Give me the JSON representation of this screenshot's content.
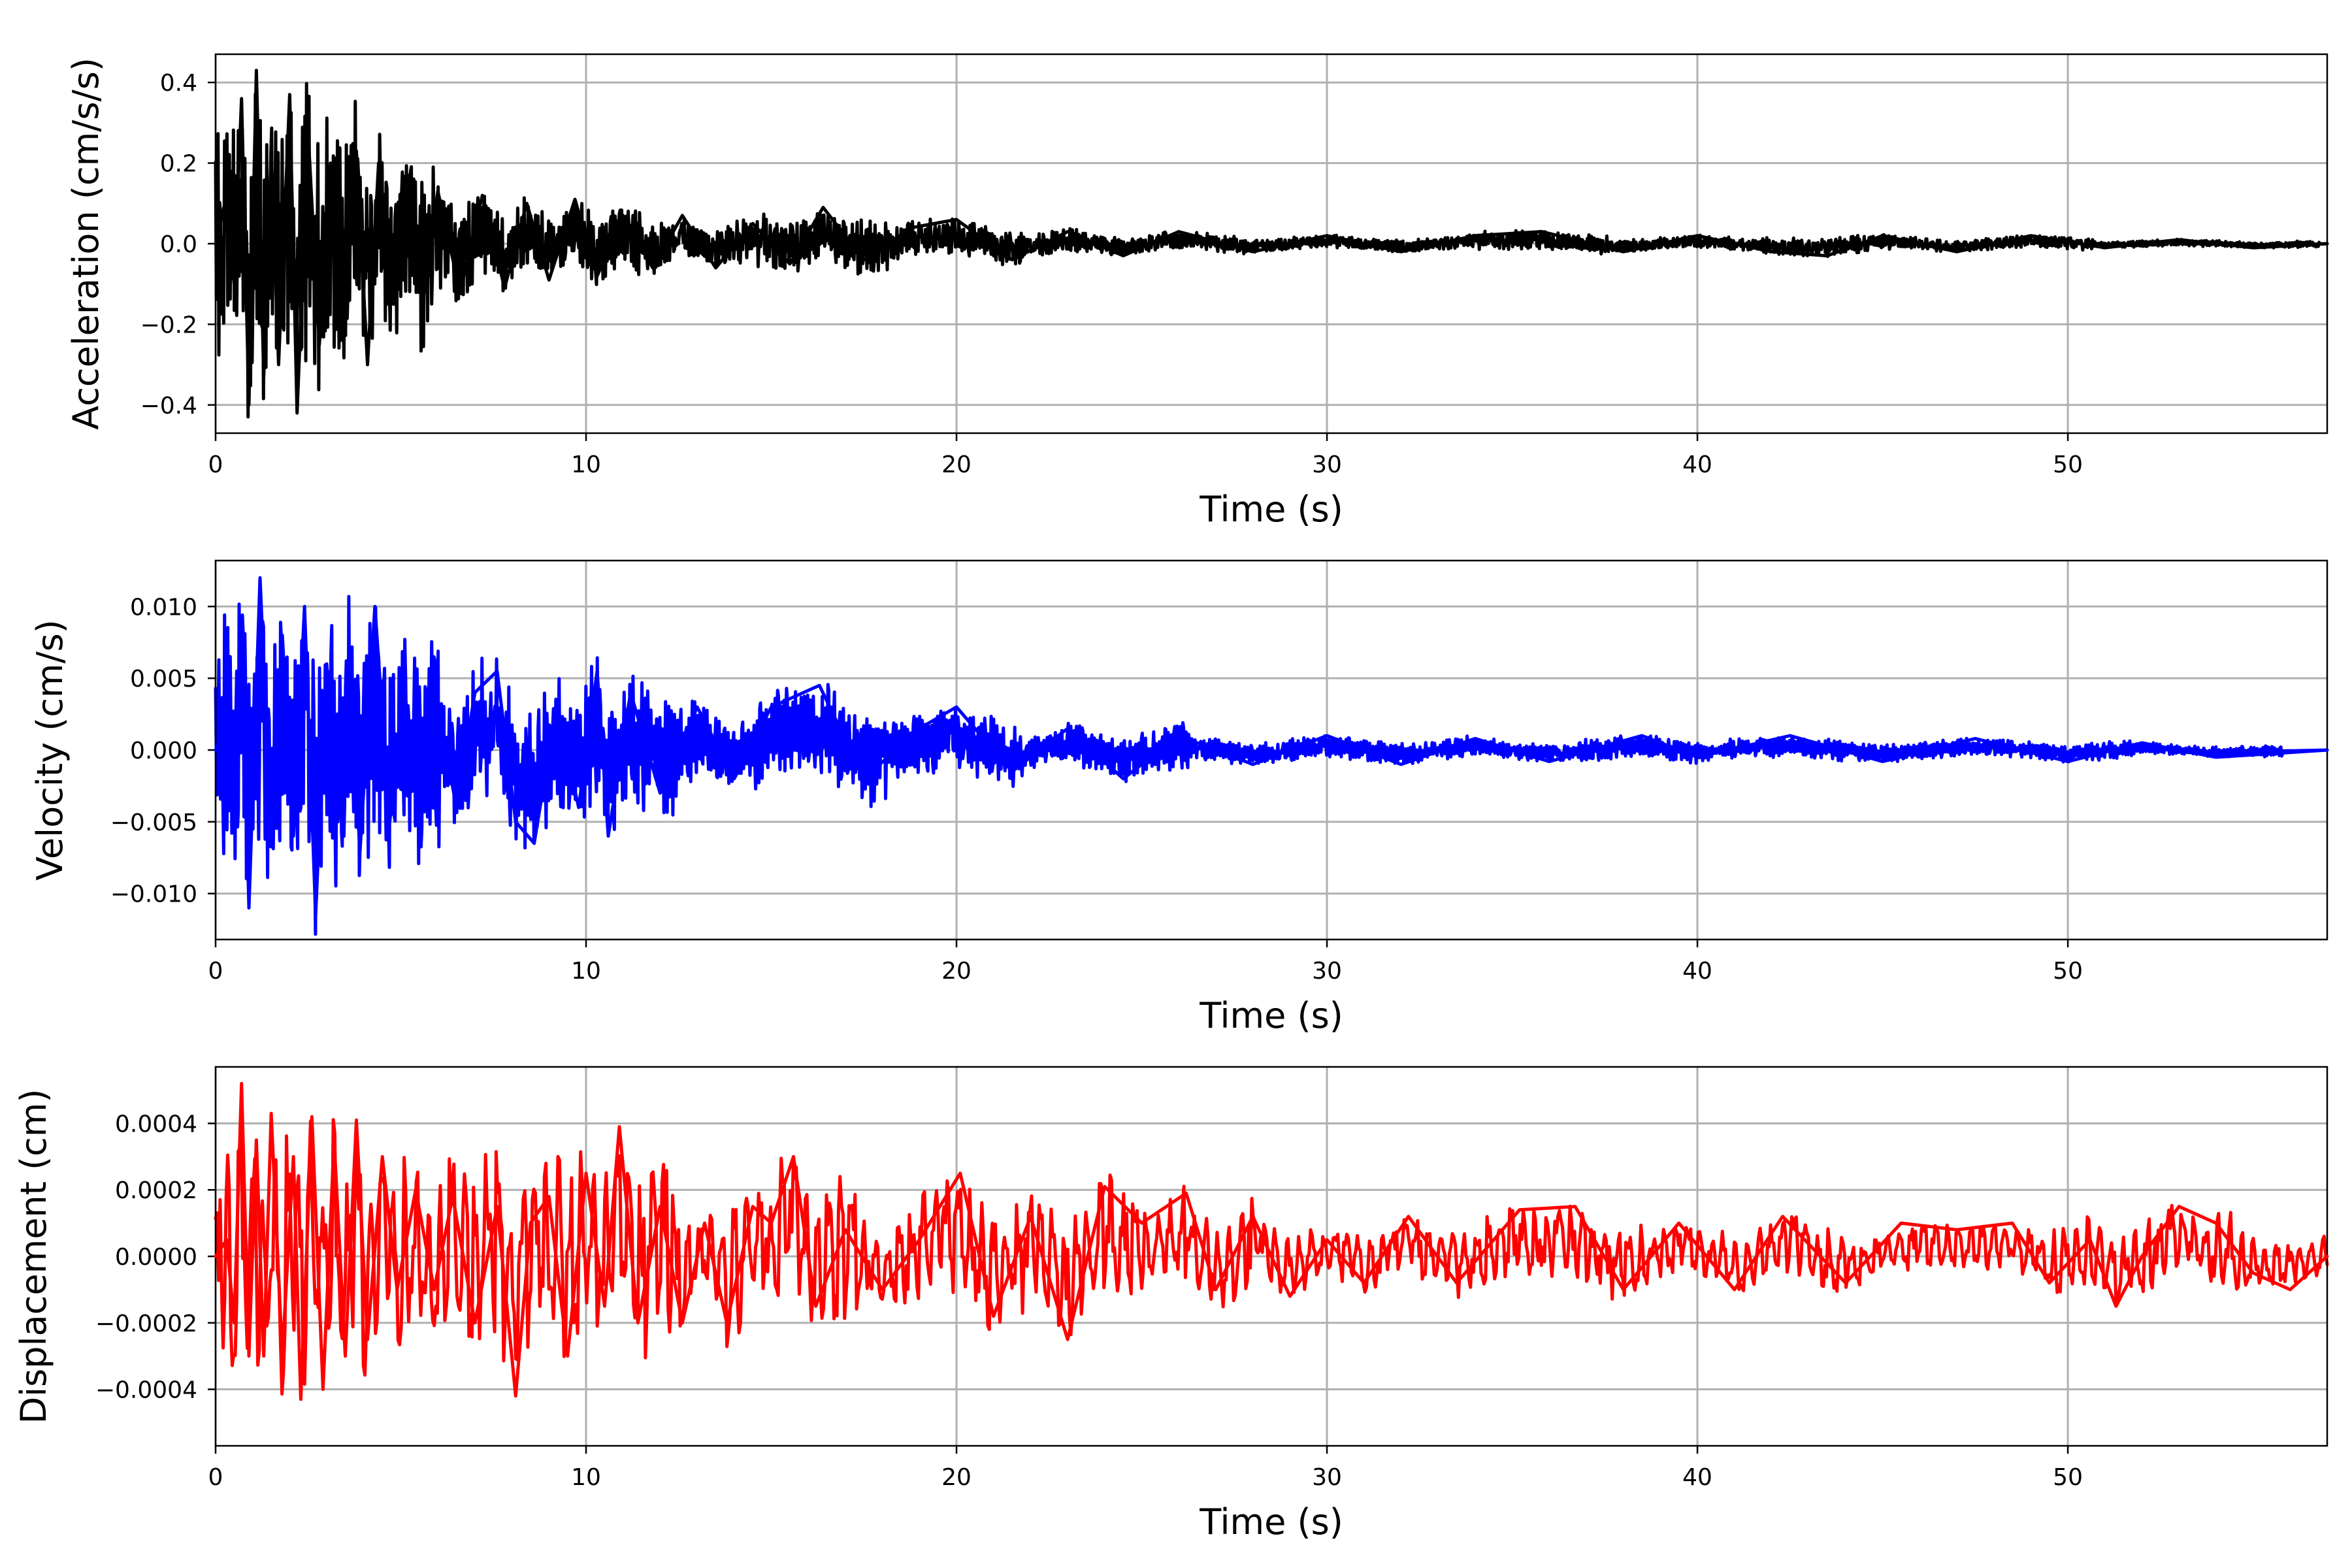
{
  "figure": {
    "panels": [
      {
        "id": "acceleration",
        "xlabel": "Time (s)",
        "ylabel": "Acceleration (cm/s/s)",
        "xlim": [
          0,
          57
        ],
        "ylim": [
          -0.47,
          0.47
        ],
        "xticks": [
          0,
          10,
          20,
          30,
          40,
          50
        ],
        "xtick_labels": [
          "0",
          "10",
          "20",
          "30",
          "40",
          "50"
        ],
        "yticks": [
          -0.4,
          -0.2,
          0.0,
          0.2,
          0.4
        ],
        "ytick_labels": [
          "−0.4",
          "−0.2",
          "0.0",
          "0.2",
          "0.4"
        ],
        "color": "#000000"
      },
      {
        "id": "velocity",
        "xlabel": "Time (s)",
        "ylabel": "Velocity (cm/s)",
        "xlim": [
          0,
          57
        ],
        "ylim": [
          -0.0132,
          0.0132
        ],
        "xticks": [
          0,
          10,
          20,
          30,
          40,
          50
        ],
        "xtick_labels": [
          "0",
          "10",
          "20",
          "30",
          "40",
          "50"
        ],
        "yticks": [
          -0.01,
          -0.005,
          0.0,
          0.005,
          0.01
        ],
        "ytick_labels": [
          "−0.010",
          "−0.005",
          "0.000",
          "0.005",
          "0.010"
        ],
        "color": "#0000ff"
      },
      {
        "id": "displacement",
        "xlabel": "Time (s)",
        "ylabel": "Displacement (cm)",
        "xlim": [
          0,
          57
        ],
        "ylim": [
          -0.00057,
          0.00057
        ],
        "xticks": [
          0,
          10,
          20,
          30,
          40,
          50
        ],
        "xtick_labels": [
          "0",
          "10",
          "20",
          "30",
          "40",
          "50"
        ],
        "yticks": [
          -0.0004,
          -0.0002,
          0.0,
          0.0002,
          0.0004
        ],
        "ytick_labels": [
          "−0.0004",
          "−0.0002",
          "0.0000",
          "0.0002",
          "0.0004"
        ],
        "color": "#ff0000"
      }
    ]
  },
  "chart_data": [
    {
      "type": "line",
      "xlabel": "Time (s)",
      "ylabel": "Acceleration (cm/s/s)",
      "xlim": [
        0,
        57
      ],
      "ylim": [
        -0.47,
        0.47
      ],
      "grid": true,
      "color": "#000000",
      "x": [
        0,
        0.3,
        0.5,
        0.7,
        0.9,
        1.1,
        1.3,
        1.5,
        1.7,
        2.0,
        2.2,
        2.5,
        2.8,
        3.1,
        3.4,
        3.8,
        4.1,
        4.4,
        4.8,
        5.2,
        5.6,
        6.0,
        6.6,
        7.2,
        7.8,
        8.4,
        9.0,
        9.7,
        10.3,
        11.0,
        11.8,
        12.6,
        13.5,
        14.5,
        15.5,
        16.4,
        17.5,
        18.8,
        20.0,
        21.5,
        23.0,
        24.5,
        26.0,
        28.0,
        30.0,
        32.0,
        34.0,
        35.8,
        38.0,
        40.0,
        42.0,
        43.5,
        45.0,
        47.0,
        49.0,
        51.0,
        53.0,
        55.0,
        57.0
      ],
      "y": [
        0.0,
        0.12,
        -0.1,
        0.36,
        -0.4,
        0.43,
        -0.33,
        0.23,
        -0.3,
        0.37,
        -0.42,
        0.27,
        -0.25,
        0.2,
        -0.18,
        0.23,
        -0.3,
        0.2,
        -0.15,
        0.17,
        -0.14,
        0.13,
        -0.12,
        0.12,
        -0.11,
        0.1,
        -0.09,
        0.11,
        -0.08,
        0.07,
        -0.06,
        0.07,
        -0.06,
        0.05,
        -0.05,
        0.09,
        -0.04,
        0.04,
        0.06,
        -0.04,
        0.03,
        -0.03,
        0.03,
        -0.02,
        0.02,
        -0.02,
        0.02,
        0.03,
        -0.02,
        0.02,
        -0.02,
        -0.03,
        0.02,
        -0.02,
        0.02,
        -0.01,
        0.01,
        -0.01,
        0.0
      ]
    },
    {
      "type": "line",
      "xlabel": "Time (s)",
      "ylabel": "Velocity (cm/s)",
      "xlim": [
        0,
        57
      ],
      "ylim": [
        -0.0132,
        0.0132
      ],
      "grid": true,
      "color": "#0000ff",
      "x": [
        0,
        0.3,
        0.5,
        0.7,
        0.9,
        1.2,
        1.5,
        1.8,
        2.1,
        2.4,
        2.7,
        3.0,
        3.3,
        3.6,
        3.9,
        4.3,
        4.7,
        5.1,
        5.5,
        6.0,
        6.5,
        7.0,
        7.6,
        8.1,
        8.6,
        9.2,
        9.8,
        10.3,
        10.6,
        11.2,
        12.0,
        13.0,
        14.0,
        15.0,
        16.3,
        17.5,
        19.0,
        20.0,
        21.5,
        23.0,
        24.5,
        26.0,
        28.0,
        30.0,
        32.0,
        34.0,
        36.0,
        38.5,
        40.0,
        42.5,
        45.0,
        47.5,
        50.0,
        52.0,
        54.0,
        57.0
      ],
      "y": [
        0.0,
        0.002,
        -0.003,
        0.009,
        -0.011,
        0.012,
        -0.006,
        0.008,
        -0.006,
        0.01,
        -0.0115,
        0.006,
        -0.005,
        0.005,
        -0.007,
        0.01,
        -0.005,
        0.004,
        -0.003,
        0.003,
        -0.004,
        0.004,
        0.0055,
        -0.005,
        -0.0065,
        0.003,
        -0.004,
        0.0055,
        -0.006,
        0.004,
        -0.003,
        0.003,
        -0.002,
        0.003,
        0.0045,
        -0.002,
        0.0015,
        0.003,
        -0.0015,
        0.0015,
        -0.002,
        0.001,
        -0.001,
        0.001,
        -0.001,
        0.0008,
        -0.0008,
        0.001,
        -0.0005,
        0.001,
        -0.0008,
        0.0008,
        -0.0008,
        0.0005,
        -0.0005,
        0.0
      ]
    },
    {
      "type": "line",
      "xlabel": "Time (s)",
      "ylabel": "Displacement (cm)",
      "xlim": [
        0,
        57
      ],
      "ylim": [
        -0.00057,
        0.00057
      ],
      "grid": true,
      "color": "#ff0000",
      "x": [
        0,
        0.3,
        0.5,
        0.7,
        0.9,
        1.1,
        1.3,
        1.5,
        1.8,
        2.1,
        2.3,
        2.6,
        2.9,
        3.2,
        3.5,
        3.8,
        4.1,
        4.5,
        4.9,
        5.4,
        5.9,
        6.4,
        7.0,
        7.6,
        8.1,
        8.5,
        9.0,
        9.5,
        10.0,
        10.5,
        10.9,
        11.4,
        12.0,
        12.6,
        13.2,
        13.8,
        14.5,
        15.0,
        15.6,
        16.2,
        17.0,
        18.0,
        19.0,
        20.1,
        21.0,
        22.0,
        23.0,
        24.0,
        25.0,
        26.2,
        27.0,
        28.0,
        29.0,
        30.0,
        31.0,
        32.2,
        33.5,
        35.2,
        36.7,
        38.0,
        39.5,
        41.0,
        42.3,
        44.0,
        45.5,
        47.0,
        48.5,
        49.5,
        50.6,
        51.3,
        52.0,
        53.0,
        54.0,
        55.0,
        56.0,
        57.0
      ],
      "y": [
        0.0,
        5e-05,
        -0.0002,
        0.00052,
        -0.0003,
        0.00035,
        -0.0003,
        0.00043,
        -0.0003,
        0.0003,
        -0.00043,
        0.00042,
        -0.0004,
        0.00035,
        -0.0003,
        0.00041,
        -0.00025,
        0.0003,
        -0.0001,
        0.0002,
        -0.0001,
        0.00018,
        -0.0002,
        0.00015,
        -0.00042,
        0.0001,
        0.00018,
        -0.0003,
        0.00025,
        -0.00015,
        0.00039,
        -0.0002,
        0.00015,
        -0.0002,
        0.0001,
        -0.0002,
        0.00015,
        0.0001,
        0.0003,
        -0.00015,
        8e-05,
        -0.0001,
        5e-05,
        0.00025,
        -0.00018,
        0.00012,
        -0.00025,
        0.00021,
        0.0001,
        0.00019,
        -0.0001,
        0.00012,
        -0.00012,
        5e-05,
        -8e-05,
        0.00012,
        -8e-05,
        0.00014,
        0.00015,
        -0.0001,
        0.0001,
        -0.0001,
        0.00012,
        -8e-05,
        0.0001,
        8e-05,
        0.0001,
        -8e-05,
        5e-05,
        -0.00015,
        0.0,
        0.00015,
        0.0001,
        -5e-05,
        -0.0001,
        0.0
      ]
    }
  ]
}
